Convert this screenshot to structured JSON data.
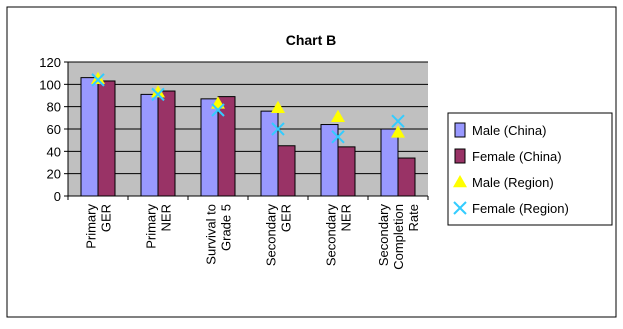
{
  "chart_data": {
    "type": "bar",
    "title": "Chart B",
    "xlabel": "",
    "ylabel": "",
    "ylim": [
      0,
      120
    ],
    "yticks": [
      0,
      20,
      40,
      60,
      80,
      100,
      120
    ],
    "grid": true,
    "legend_position": "right",
    "categories": [
      [
        "Primary",
        "GER"
      ],
      [
        "Primary",
        "NER"
      ],
      [
        "Survival to",
        "Grade 5"
      ],
      [
        "Secondary",
        "GER"
      ],
      [
        "Secondary",
        "NER"
      ],
      [
        "Secondary",
        "Completion",
        "Rate"
      ]
    ],
    "series": [
      {
        "name": "Male (China)",
        "type": "bar",
        "color": "#9999ff",
        "values": [
          106,
          91,
          87,
          76,
          64,
          60
        ]
      },
      {
        "name": "Female (China)",
        "type": "bar",
        "color": "#993366",
        "values": [
          103,
          94,
          89,
          45,
          44,
          34
        ]
      },
      {
        "name": "Male (Region)",
        "type": "marker",
        "marker": "triangle",
        "color": "#ffff00",
        "values": [
          105,
          93,
          83,
          79,
          71,
          57
        ]
      },
      {
        "name": "Female (Region)",
        "type": "marker",
        "marker": "x",
        "color": "#33ccff",
        "values": [
          104,
          91,
          77,
          60,
          53,
          67
        ]
      }
    ]
  }
}
